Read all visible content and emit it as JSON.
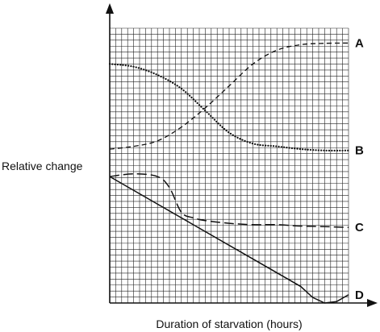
{
  "chart_data": {
    "type": "line",
    "title": "",
    "xlabel": "Duration of starvation (hours)",
    "ylabel": "Relative change",
    "xlim": [
      0,
      100
    ],
    "ylim": [
      0,
      100
    ],
    "grid": true,
    "ticks_labeled": false,
    "series": [
      {
        "name": "A",
        "style": "dashed-short",
        "x": [
          0,
          10,
          20,
          30,
          40,
          50,
          60,
          70,
          80,
          90,
          100
        ],
        "y": [
          56,
          57,
          59,
          64,
          71,
          79,
          87,
          92,
          94,
          94.5,
          94.6
        ]
      },
      {
        "name": "B",
        "style": "dotted",
        "x": [
          0,
          10,
          20,
          30,
          40,
          50,
          60,
          70,
          80,
          90,
          100
        ],
        "y": [
          87,
          86,
          83,
          78,
          70,
          62,
          58,
          57,
          56,
          55.5,
          55.5
        ]
      },
      {
        "name": "C",
        "style": "dashed-long",
        "x": [
          0,
          10,
          20,
          25,
          30,
          35,
          40,
          50,
          60,
          70,
          80,
          90,
          100
        ],
        "y": [
          46,
          47,
          46,
          42,
          33,
          31,
          30,
          29,
          28.5,
          28.5,
          28,
          27.8,
          27.5
        ]
      },
      {
        "name": "D",
        "style": "solid",
        "x": [
          0,
          20,
          40,
          60,
          80,
          85,
          90,
          95,
          100
        ],
        "y": [
          46,
          36,
          26,
          16,
          6,
          2,
          0,
          0.5,
          3
        ]
      }
    ]
  }
}
